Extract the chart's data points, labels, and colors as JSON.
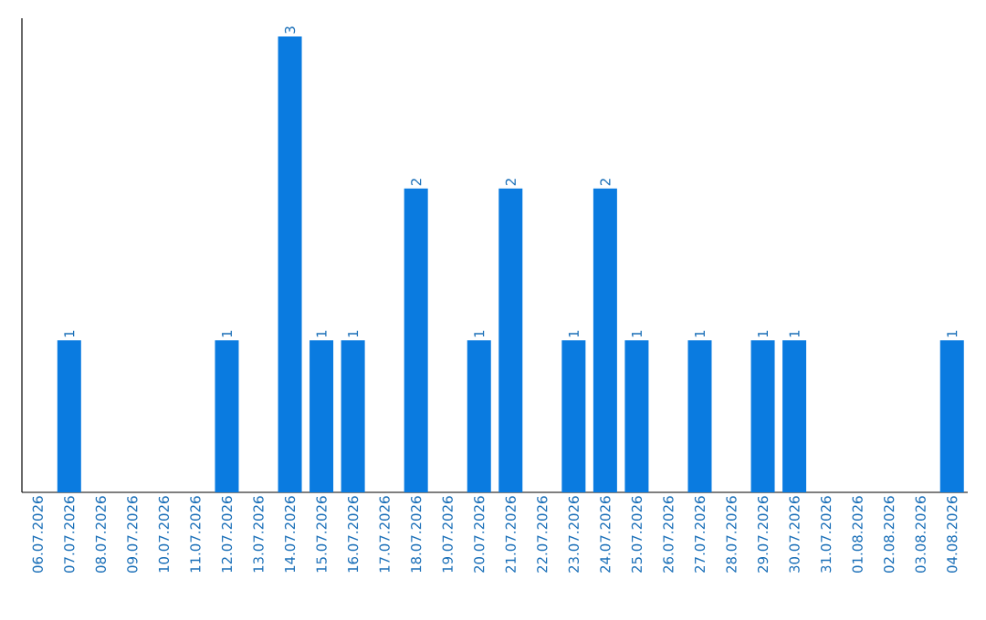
{
  "chart_data": {
    "type": "bar",
    "categories": [
      "06.07.2026",
      "07.07.2026",
      "08.07.2026",
      "09.07.2026",
      "10.07.2026",
      "11.07.2026",
      "12.07.2026",
      "13.07.2026",
      "14.07.2026",
      "15.07.2026",
      "16.07.2026",
      "17.07.2026",
      "18.07.2026",
      "19.07.2026",
      "20.07.2026",
      "21.07.2026",
      "22.07.2026",
      "23.07.2026",
      "24.07.2026",
      "25.07.2026",
      "26.07.2026",
      "27.07.2026",
      "28.07.2026",
      "29.07.2026",
      "30.07.2026",
      "31.07.2026",
      "01.08.2026",
      "02.08.2026",
      "03.08.2026",
      "04.08.2026"
    ],
    "values": [
      0,
      1,
      0,
      0,
      0,
      0,
      1,
      0,
      3,
      1,
      1,
      0,
      2,
      0,
      1,
      2,
      0,
      1,
      2,
      1,
      0,
      1,
      0,
      1,
      1,
      0,
      0,
      0,
      0,
      1
    ],
    "value_labels": [
      null,
      "1",
      null,
      null,
      null,
      null,
      "1",
      null,
      "3",
      "1",
      "1",
      null,
      "2",
      null,
      "1",
      "2",
      null,
      "1",
      "2",
      "1",
      null,
      "1",
      null,
      "1",
      "1",
      null,
      null,
      null,
      null,
      "1"
    ],
    "color": "#0a7be0",
    "tick_labels": "x"
  }
}
